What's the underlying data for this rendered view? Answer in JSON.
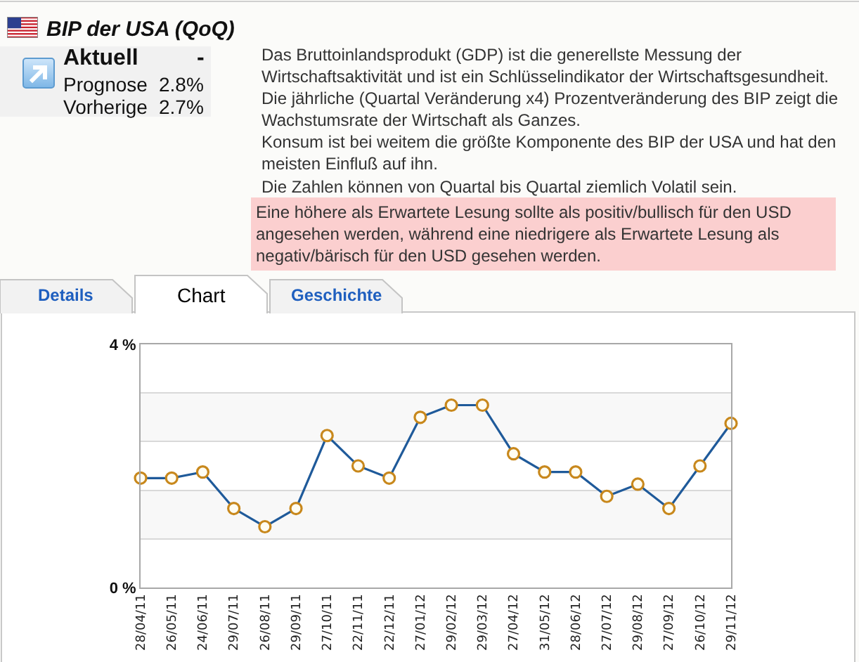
{
  "chart_data": {
    "type": "line",
    "title": "BIP der USA (QoQ)",
    "categories": [
      "28/04/11",
      "26/05/11",
      "24/06/11",
      "29/07/11",
      "26/08/11",
      "29/09/11",
      "27/10/11",
      "22/11/11",
      "22/12/11",
      "27/01/12",
      "29/02/12",
      "29/03/12",
      "27/04/12",
      "31/05/12",
      "28/06/12",
      "27/07/12",
      "29/08/12",
      "27/09/12",
      "26/10/12",
      "29/11/12"
    ],
    "series": [
      {
        "color": "#1f5a9a",
        "values": [
          1.8,
          1.8,
          1.9,
          1.3,
          1.0,
          1.3,
          2.5,
          2.0,
          1.8,
          2.8,
          3.0,
          3.0,
          2.2,
          1.9,
          1.9,
          1.5,
          1.7,
          1.3,
          2.0,
          2.7
        ]
      }
    ],
    "ylim": [
      0,
      4
    ],
    "yticks": [
      {
        "value": 0,
        "label": "0 %"
      },
      {
        "value": 0.8,
        "label": null
      },
      {
        "value": 1.6,
        "label": null
      },
      {
        "value": 2.4,
        "label": null
      },
      {
        "value": 3.2,
        "label": null
      },
      {
        "value": 4,
        "label": "4 %"
      }
    ],
    "grid": "y",
    "marker": "circle",
    "bands": [
      {
        "axis": "y",
        "from": 0.8,
        "to": 1.6,
        "color": "#f8f8f8"
      },
      {
        "axis": "y",
        "from": 2.4,
        "to": 3.2,
        "color": "#f8f8f8"
      }
    ],
    "annotations": [
      "Aktuell",
      "-",
      "Prognose",
      "2.8%",
      "Vorherige",
      "2.7%",
      "Das Bruttoinlandsprodukt (GDP) ist die generellste Messung der\nWirtschaftsaktivität und ist ein Schlüsselindikator der Wirtschaftsgesundheit.",
      "Die jährliche (Quartal Veränderung x4) Prozentveränderung des BIP zeigt die\nWachstumsrate der Wirtschaft als Ganzes.",
      "Konsum ist bei weitem die größte Komponente des BIP der USA und hat den\nmeisten Einfluß auf ihn.",
      "Die Zahlen können von Quartal bis Quartal ziemlich Volatil sein.",
      "Eine höhere als Erwartete Lesung sollte als positiv/bullisch für den USD\nangesehen werden, während eine niedrigere als Erwartete Lesung als\nnegativ/bärisch für den USD gesehen werden.",
      "Details",
      "Chart",
      "Geschichte"
    ]
  }
}
